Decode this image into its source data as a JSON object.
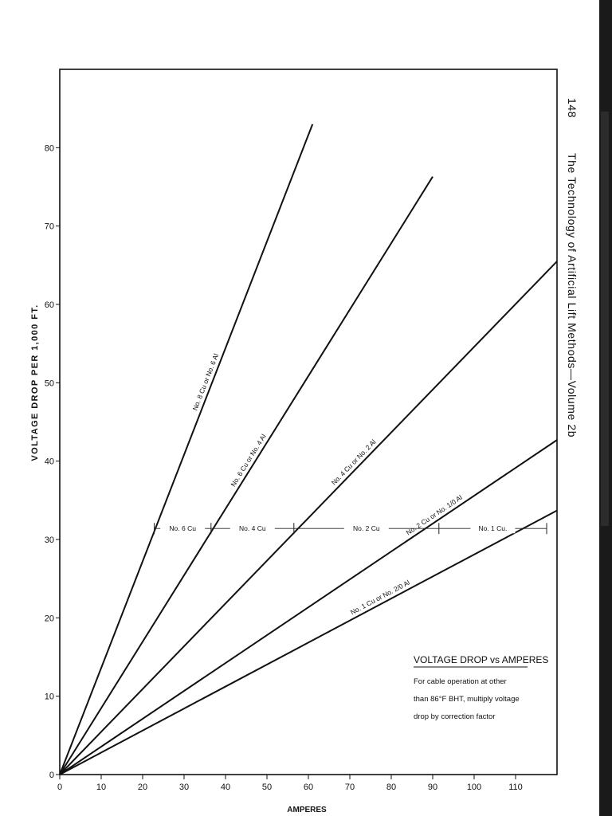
{
  "page": {
    "page_number": "148",
    "running_title": "The Technology of Artificial Lift Methods—Volume 2b"
  },
  "chart_data": {
    "type": "line",
    "title": "VOLTAGE DROP vs AMPERES",
    "note_lines": [
      "For cable operation at other",
      "than 86°F BHT, multiply voltage",
      "drop by correction factor"
    ],
    "xlabel": "AMPERES",
    "ylabel": "VOLTAGE DROP PER 1,000 FT.",
    "xlim": [
      0,
      120
    ],
    "ylim": [
      0,
      90
    ],
    "x_ticks": [
      0,
      10,
      20,
      30,
      40,
      50,
      60,
      70,
      80,
      90,
      100,
      110
    ],
    "y_ticks": [
      0,
      10,
      20,
      30,
      40,
      50,
      60,
      70,
      80
    ],
    "grid": false,
    "series": [
      {
        "name": "No. 8 Cu or No. 6 Al",
        "x": [
          0,
          61
        ],
        "y": [
          0,
          83
        ]
      },
      {
        "name": "No. 6 Cu or No. 4 Al",
        "x": [
          0,
          90
        ],
        "y": [
          0,
          76.3
        ]
      },
      {
        "name": "No. 4 Cu or No. 2 Al",
        "x": [
          0,
          120
        ],
        "y": [
          0,
          65.5
        ]
      },
      {
        "name": "No. 2 Cu or No. 1/0 Al",
        "x": [
          0,
          120
        ],
        "y": [
          0,
          42.7
        ]
      },
      {
        "name": "No. 1 Cu or No. 2/0 Al",
        "x": [
          0,
          120
        ],
        "y": [
          0,
          33.7
        ]
      }
    ],
    "recommended_ranges": {
      "y": 31.4,
      "segments": [
        {
          "label": "No. 6 Cu",
          "x_start": 22.8,
          "x_end": 36.5
        },
        {
          "label": "No. 4 Cu",
          "x_start": 36.5,
          "x_end": 56.5
        },
        {
          "label": "No. 2 Cu",
          "x_start": 56.5,
          "x_end": 91.5
        },
        {
          "label": "No. 1 Cu.",
          "x_start": 91.5,
          "x_end": 117.5
        }
      ]
    }
  }
}
